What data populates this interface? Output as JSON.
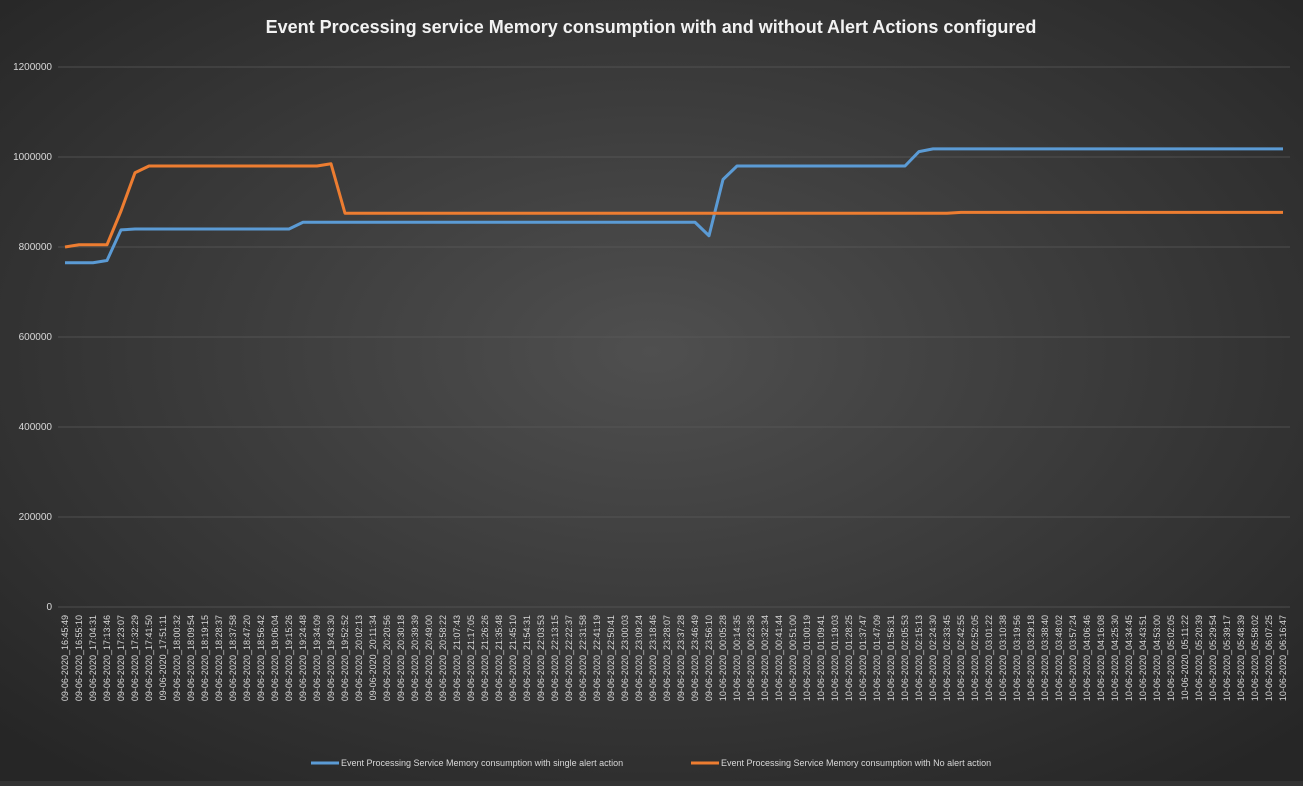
{
  "chart_data": {
    "type": "line",
    "title": "Event Processing service Memory consumption with and without Alert Actions configured",
    "categories": [
      "09-06-2020_16:45:49",
      "09-06-2020_16:55:10",
      "09-06-2020_17:04:31",
      "09-06-2020_17:13:46",
      "09-06-2020_17:23:07",
      "09-06-2020_17:32:29",
      "09-06-2020_17:41:50",
      "09-06-2020_17:51:11",
      "09-06-2020_18:00:32",
      "09-06-2020_18:09:54",
      "09-06-2020_18:19:15",
      "09-06-2020_18:28:37",
      "09-06-2020_18:37:58",
      "09-06-2020_18:47:20",
      "09-06-2020_18:56:42",
      "09-06-2020_19:06:04",
      "09-06-2020_19:15:26",
      "09-06-2020_19:24:48",
      "09-06-2020_19:34:09",
      "09-06-2020_19:43:30",
      "09-06-2020_19:52:52",
      "09-06-2020_20:02:13",
      "09-06-2020_20:11:34",
      "09-06-2020_20:20:56",
      "09-06-2020_20:30:18",
      "09-06-2020_20:39:39",
      "09-06-2020_20:49:00",
      "09-06-2020_20:58:22",
      "09-06-2020_21:07:43",
      "09-06-2020_21:17:05",
      "09-06-2020_21:26:26",
      "09-06-2020_21:35:48",
      "09-06-2020_21:45:10",
      "09-06-2020_21:54:31",
      "09-06-2020_22:03:53",
      "09-06-2020_22:13:15",
      "09-06-2020_22:22:37",
      "09-06-2020_22:31:58",
      "09-06-2020_22:41:19",
      "09-06-2020_22:50:41",
      "09-06-2020_23:00:03",
      "09-06-2020_23:09:24",
      "09-06-2020_23:18:46",
      "09-06-2020_23:28:07",
      "09-06-2020_23:37:28",
      "09-06-2020_23:46:49",
      "09-06-2020_23:56:10",
      "10-06-2020_00:05:28",
      "10-06-2020_00:14:35",
      "10-06-2020_00:23:36",
      "10-06-2020_00:32:34",
      "10-06-2020_00:41:44",
      "10-06-2020_00:51:00",
      "10-06-2020_01:00:19",
      "10-06-2020_01:09:41",
      "10-06-2020_01:19:03",
      "10-06-2020_01:28:25",
      "10-06-2020_01:37:47",
      "10-06-2020_01:47:09",
      "10-06-2020_01:56:31",
      "10-06-2020_02:05:53",
      "10-06-2020_02:15:13",
      "10-06-2020_02:24:30",
      "10-06-2020_02:33:45",
      "10-06-2020_02:42:55",
      "10-06-2020_02:52:05",
      "10-06-2020_03:01:22",
      "10-06-2020_03:10:38",
      "10-06-2020_03:19:56",
      "10-06-2020_03:29:18",
      "10-06-2020_03:38:40",
      "10-06-2020_03:48:02",
      "10-06-2020_03:57:24",
      "10-06-2020_04:06:46",
      "10-06-2020_04:16:08",
      "10-06-2020_04:25:30",
      "10-06-2020_04:34:45",
      "10-06-2020_04:43:51",
      "10-06-2020_04:53:00",
      "10-06-2020_05:02:05",
      "10-06-2020_05:11:22",
      "10-06-2020_05:20:39",
      "10-06-2020_05:29:54",
      "10-06-2020_05:39:17",
      "10-06-2020_05:48:39",
      "10-06-2020_05:58:02",
      "10-06-2020_06:07:25",
      "10-06-2020_06:16:47"
    ],
    "series": [
      {
        "name": "Event Processing Service Memory consumption with single alert action",
        "color": "#5b9bd5",
        "values": [
          765000,
          765000,
          765000,
          770000,
          838000,
          840000,
          840000,
          840000,
          840000,
          840000,
          840000,
          840000,
          840000,
          840000,
          840000,
          840000,
          840000,
          855000,
          855000,
          855000,
          855000,
          855000,
          855000,
          855000,
          855000,
          855000,
          855000,
          855000,
          855000,
          855000,
          855000,
          855000,
          855000,
          855000,
          855000,
          855000,
          855000,
          855000,
          855000,
          855000,
          855000,
          855000,
          855000,
          855000,
          855000,
          855000,
          825000,
          950000,
          980000,
          980000,
          980000,
          980000,
          980000,
          980000,
          980000,
          980000,
          980000,
          980000,
          980000,
          980000,
          980000,
          1012000,
          1018000,
          1018000,
          1018000,
          1018000,
          1018000,
          1018000,
          1018000,
          1018000,
          1018000,
          1018000,
          1018000,
          1018000,
          1018000,
          1018000,
          1018000,
          1018000,
          1018000,
          1018000,
          1018000,
          1018000,
          1018000,
          1018000,
          1018000,
          1018000,
          1018000,
          1018000
        ]
      },
      {
        "name": "Event Processing Service Memory consumption with No alert action",
        "color": "#ed7d31",
        "values": [
          800000,
          805000,
          805000,
          805000,
          880000,
          965000,
          980000,
          980000,
          980000,
          980000,
          980000,
          980000,
          980000,
          980000,
          980000,
          980000,
          980000,
          980000,
          980000,
          985000,
          875000,
          875000,
          875000,
          875000,
          875000,
          875000,
          875000,
          875000,
          875000,
          875000,
          875000,
          875000,
          875000,
          875000,
          875000,
          875000,
          875000,
          875000,
          875000,
          875000,
          875000,
          875000,
          875000,
          875000,
          875000,
          875000,
          875000,
          875000,
          875000,
          875000,
          875000,
          875000,
          875000,
          875000,
          875000,
          875000,
          875000,
          875000,
          875000,
          875000,
          875000,
          875000,
          875000,
          875000,
          877000,
          877000,
          877000,
          877000,
          877000,
          877000,
          877000,
          877000,
          877000,
          877000,
          877000,
          877000,
          877000,
          877000,
          877000,
          877000,
          877000,
          877000,
          877000,
          877000,
          877000,
          877000,
          877000,
          877000
        ]
      }
    ],
    "ylim": [
      0,
      1200000
    ],
    "yticks": [
      0,
      200000,
      400000,
      600000,
      800000,
      1000000,
      1200000
    ],
    "grid": true,
    "legend": "bottom"
  }
}
